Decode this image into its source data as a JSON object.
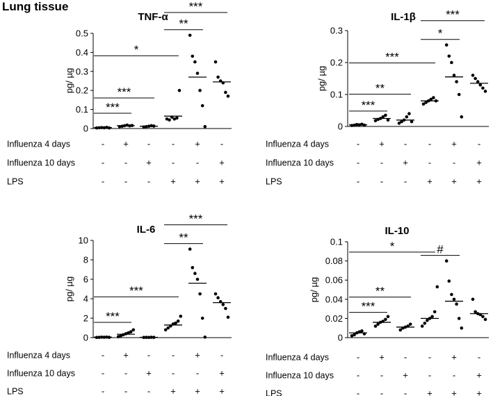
{
  "page_title": "Lung tissue",
  "colors": {
    "ink": "#000000",
    "background": "#ffffff"
  },
  "group_labels": [
    "Influenza 4 days",
    "Influenza 10 days",
    "LPS"
  ],
  "condition_matrix": [
    [
      "-",
      "+",
      "-",
      "-",
      "+",
      "-"
    ],
    [
      "-",
      "-",
      "+",
      "-",
      "-",
      "+"
    ],
    [
      "-",
      "-",
      "-",
      "+",
      "+",
      "+"
    ]
  ],
  "chart_data": [
    {
      "type": "scatter",
      "title": "TNF-α",
      "ylabel": "pg/ µg",
      "ylim": [
        0,
        0.5
      ],
      "yticks": [
        "0",
        "0.1",
        "0.2",
        "0.3",
        "0.4",
        "0.5"
      ],
      "medians": [
        0.005,
        0.015,
        0.012,
        0.065,
        0.27,
        0.245
      ],
      "points": [
        [
          0.003,
          0.004,
          0.005,
          0.004,
          0.006,
          0.003
        ],
        [
          0.01,
          0.012,
          0.015,
          0.018,
          0.014,
          0.016
        ],
        [
          0.008,
          0.01,
          0.012,
          0.015,
          0.013
        ],
        [
          0.05,
          0.045,
          0.06,
          0.05,
          0.055,
          0.2
        ],
        [
          0.49,
          0.38,
          0.35,
          0.29,
          0.2,
          0.12,
          0.01
        ],
        [
          0.35,
          0.27,
          0.25,
          0.24,
          0.19,
          0.17
        ]
      ],
      "significance": [
        {
          "from": 0,
          "to": 1,
          "label": "***"
        },
        {
          "from": 0,
          "to": 2,
          "label": "***"
        },
        {
          "from": 0,
          "to": 3,
          "label": "*"
        },
        {
          "from": 3,
          "to": 4,
          "label": "**"
        },
        {
          "from": 3,
          "to": 5,
          "label": "***"
        }
      ]
    },
    {
      "type": "scatter",
      "title": "IL-1β",
      "ylabel": "pg/ µg",
      "ylim": [
        0,
        0.3
      ],
      "yticks": [
        "0",
        "0.1",
        "0.2",
        "0.3"
      ],
      "medians": [
        0.005,
        0.025,
        0.02,
        0.08,
        0.155,
        0.135
      ],
      "points": [
        [
          0.003,
          0.004,
          0.006,
          0.005,
          0.007,
          0.004
        ],
        [
          0.018,
          0.022,
          0.025,
          0.03,
          0.035,
          0.02
        ],
        [
          0.01,
          0.015,
          0.02,
          0.03,
          0.04,
          0.015
        ],
        [
          0.07,
          0.075,
          0.08,
          0.085,
          0.09,
          0.08
        ],
        [
          0.255,
          0.22,
          0.2,
          0.16,
          0.14,
          0.1,
          0.03
        ],
        [
          0.16,
          0.15,
          0.14,
          0.13,
          0.12,
          0.11
        ]
      ],
      "significance": [
        {
          "from": 0,
          "to": 1,
          "label": "***"
        },
        {
          "from": 0,
          "to": 2,
          "label": "**"
        },
        {
          "from": 0,
          "to": 3,
          "label": "***"
        },
        {
          "from": 3,
          "to": 4,
          "label": "*"
        },
        {
          "from": 3,
          "to": 5,
          "label": "***"
        }
      ]
    },
    {
      "type": "scatter",
      "title": "IL-6",
      "ylabel": "pg/ µg",
      "ylim": [
        0,
        10
      ],
      "yticks": [
        "0",
        "2",
        "4",
        "6",
        "8",
        "10"
      ],
      "medians": [
        0.05,
        0.35,
        0.03,
        1.3,
        5.6,
        3.6
      ],
      "points": [
        [
          0.02,
          0.03,
          0.05,
          0.04,
          0.06,
          0.03
        ],
        [
          0.1,
          0.2,
          0.3,
          0.4,
          0.5,
          0.6,
          0.8
        ],
        [
          0.02,
          0.03,
          0.02,
          0.04,
          0.03
        ],
        [
          0.8,
          1.0,
          1.2,
          1.4,
          1.5,
          1.7,
          2.2
        ],
        [
          9.1,
          7.2,
          6.6,
          6.0,
          4.5,
          2.0,
          0.05
        ],
        [
          4.5,
          4.1,
          3.7,
          3.4,
          3.0,
          2.1
        ]
      ],
      "significance": [
        {
          "from": 0,
          "to": 1,
          "label": "***"
        },
        {
          "from": 0,
          "to": 3,
          "label": "***"
        },
        {
          "from": 3,
          "to": 4,
          "label": "**"
        },
        {
          "from": 3,
          "to": 5,
          "label": "***"
        }
      ]
    },
    {
      "type": "scatter",
      "title": "IL-10",
      "ylabel": "pg/ µg",
      "ylim": [
        0,
        0.1
      ],
      "yticks": [
        "0",
        "0.02",
        "0.04",
        "0.06",
        "0.08",
        "0.1"
      ],
      "medians": [
        0.005,
        0.016,
        0.011,
        0.02,
        0.038,
        0.025
      ],
      "points": [
        [
          0.002,
          0.003,
          0.005,
          0.006,
          0.007,
          0.004
        ],
        [
          0.012,
          0.014,
          0.016,
          0.017,
          0.019,
          0.022
        ],
        [
          0.008,
          0.01,
          0.011,
          0.012,
          0.014
        ],
        [
          0.012,
          0.015,
          0.018,
          0.02,
          0.022,
          0.027,
          0.053
        ],
        [
          0.08,
          0.059,
          0.045,
          0.04,
          0.035,
          0.02,
          0.01
        ],
        [
          0.04,
          0.027,
          0.025,
          0.024,
          0.022,
          0.019
        ]
      ],
      "significance": [
        {
          "from": 0,
          "to": 1,
          "label": "***"
        },
        {
          "from": 0,
          "to": 2,
          "label": "**"
        },
        {
          "from": 0,
          "to": 3,
          "label": "*"
        },
        {
          "from": 3,
          "to": 4,
          "label": "#"
        }
      ]
    }
  ]
}
